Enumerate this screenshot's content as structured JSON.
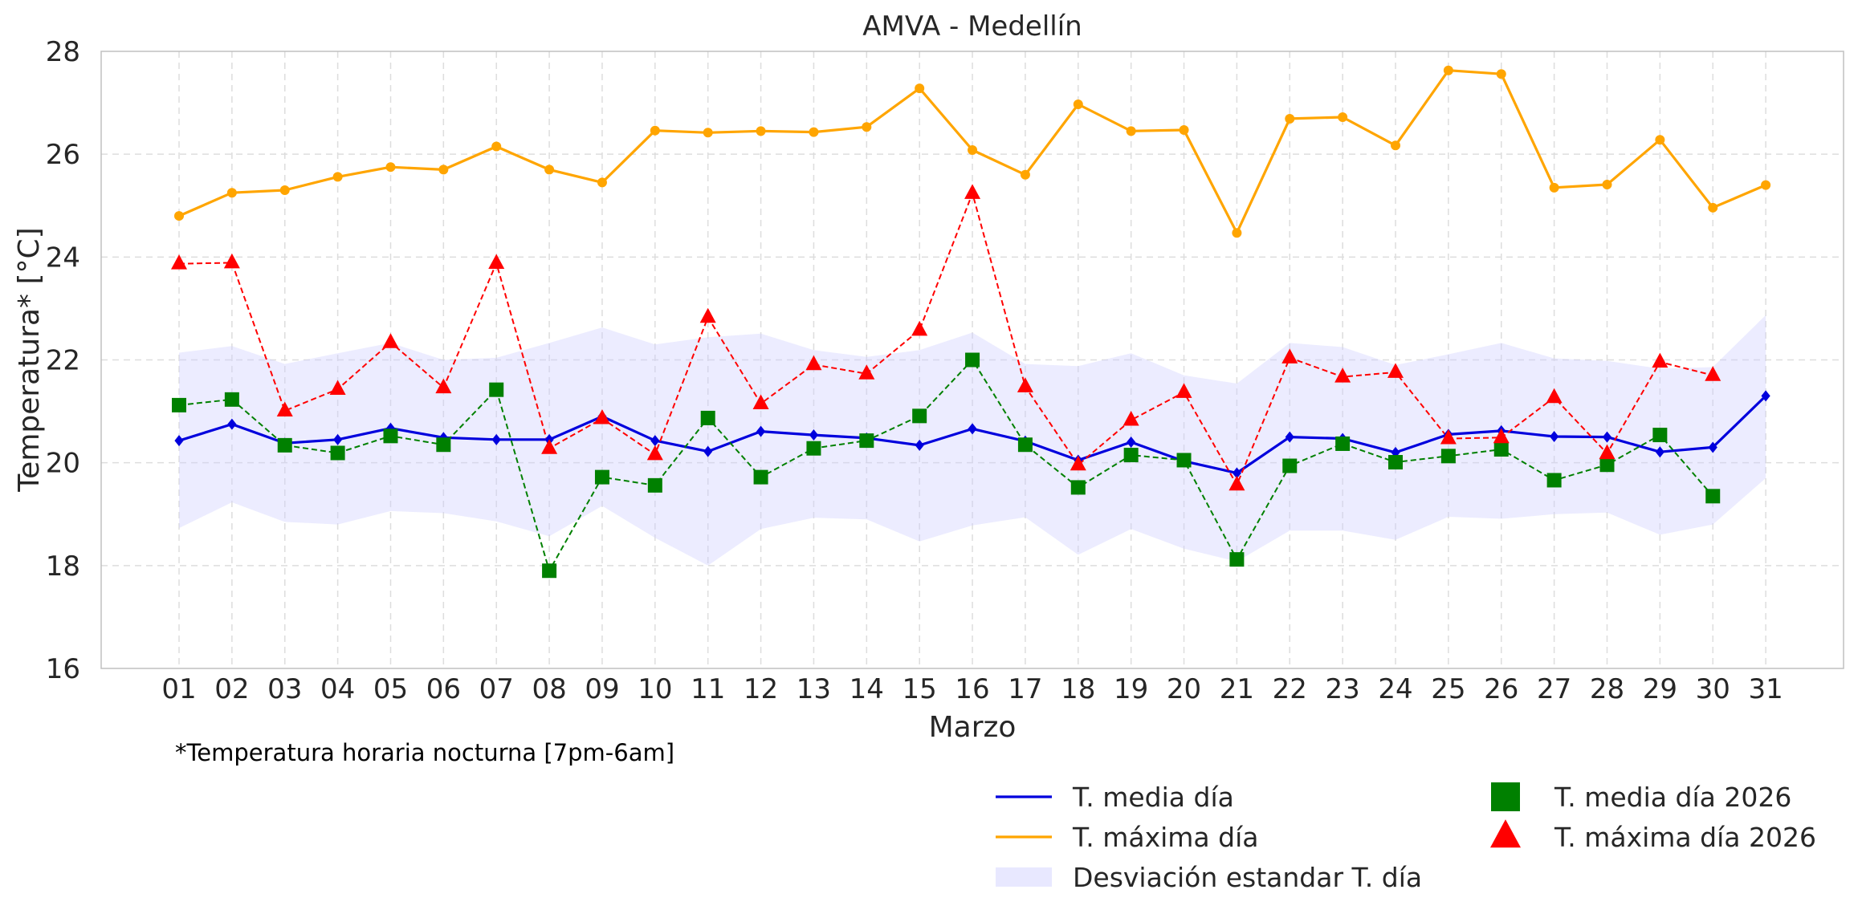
{
  "chart_data": {
    "type": "line",
    "title": "AMVA - Medellín",
    "xlabel": "Marzo",
    "ylabel": "Temperatura* [°C]",
    "footnote": "*Temperatura horaria nocturna [7pm-6am]",
    "ylim": [
      16,
      28
    ],
    "yticks": [
      "16",
      "18",
      "20",
      "22",
      "24",
      "26",
      "28"
    ],
    "categories": [
      "01",
      "02",
      "03",
      "04",
      "05",
      "06",
      "07",
      "08",
      "09",
      "10",
      "11",
      "12",
      "13",
      "14",
      "15",
      "16",
      "17",
      "18",
      "19",
      "20",
      "21",
      "22",
      "23",
      "24",
      "25",
      "26",
      "27",
      "28",
      "29",
      "30",
      "31"
    ],
    "grid": true,
    "legend_position": "bottom-right",
    "series": [
      {
        "name": "T. media día",
        "kind": "line",
        "color": "#0000dd",
        "marker": "diamond",
        "values": [
          20.43,
          20.75,
          20.38,
          20.45,
          20.67,
          20.49,
          20.45,
          20.45,
          20.9,
          20.43,
          20.22,
          20.61,
          20.54,
          20.48,
          20.34,
          20.66,
          20.42,
          20.05,
          20.4,
          20.03,
          19.8,
          20.5,
          20.47,
          20.2,
          20.55,
          20.62,
          20.51,
          20.5,
          20.21,
          20.3,
          21.3
        ]
      },
      {
        "name": "T. máxima día",
        "kind": "line",
        "color": "#ffa500",
        "marker": "circle",
        "values": [
          24.8,
          25.25,
          25.3,
          25.56,
          25.75,
          25.7,
          26.15,
          25.7,
          25.45,
          26.46,
          26.42,
          26.45,
          26.43,
          26.53,
          27.28,
          26.08,
          25.6,
          26.97,
          26.45,
          26.47,
          24.47,
          26.69,
          26.72,
          26.17,
          27.63,
          27.56,
          25.35,
          25.41,
          26.28,
          24.96,
          25.4
        ]
      },
      {
        "name": "Desviación estandar T. día",
        "kind": "band",
        "color": "#ccccff",
        "upper": [
          22.14,
          22.27,
          21.92,
          22.13,
          22.33,
          22.0,
          22.04,
          22.33,
          22.63,
          22.3,
          22.44,
          22.51,
          22.19,
          22.06,
          22.19,
          22.53,
          21.92,
          21.88,
          22.13,
          21.7,
          21.54,
          22.33,
          22.25,
          21.9,
          22.11,
          22.33,
          22.03,
          21.98,
          21.83,
          21.86,
          22.87
        ],
        "lower": [
          18.73,
          19.23,
          18.85,
          18.8,
          19.06,
          19.02,
          18.86,
          18.57,
          19.16,
          18.54,
          18.0,
          18.71,
          18.93,
          18.9,
          18.47,
          18.78,
          18.94,
          18.21,
          18.71,
          18.33,
          18.08,
          18.68,
          18.68,
          18.5,
          18.95,
          18.91,
          19.0,
          19.03,
          18.6,
          18.8,
          19.7
        ]
      },
      {
        "name": "T. media día 2026",
        "kind": "marker",
        "color": "#008000",
        "marker": "square",
        "values": [
          21.12,
          21.23,
          20.34,
          20.19,
          20.52,
          20.35,
          21.42,
          17.9,
          19.72,
          19.56,
          20.87,
          19.72,
          20.28,
          20.43,
          20.91,
          22.0,
          20.35,
          19.52,
          20.15,
          20.05,
          18.12,
          19.94,
          20.37,
          20.01,
          20.13,
          20.26,
          19.66,
          19.96,
          20.54,
          19.35,
          null
        ]
      },
      {
        "name": "T. máxima día 2026",
        "kind": "marker",
        "color": "#ff0000",
        "marker": "triangle",
        "values": [
          23.87,
          23.89,
          21.01,
          21.43,
          22.34,
          21.46,
          23.88,
          20.28,
          20.86,
          20.16,
          22.83,
          21.15,
          21.91,
          21.73,
          22.58,
          25.24,
          21.48,
          19.96,
          20.83,
          21.37,
          19.57,
          22.04,
          21.67,
          21.76,
          20.47,
          20.49,
          21.27,
          20.18,
          21.96,
          21.7,
          null
        ]
      }
    ]
  }
}
